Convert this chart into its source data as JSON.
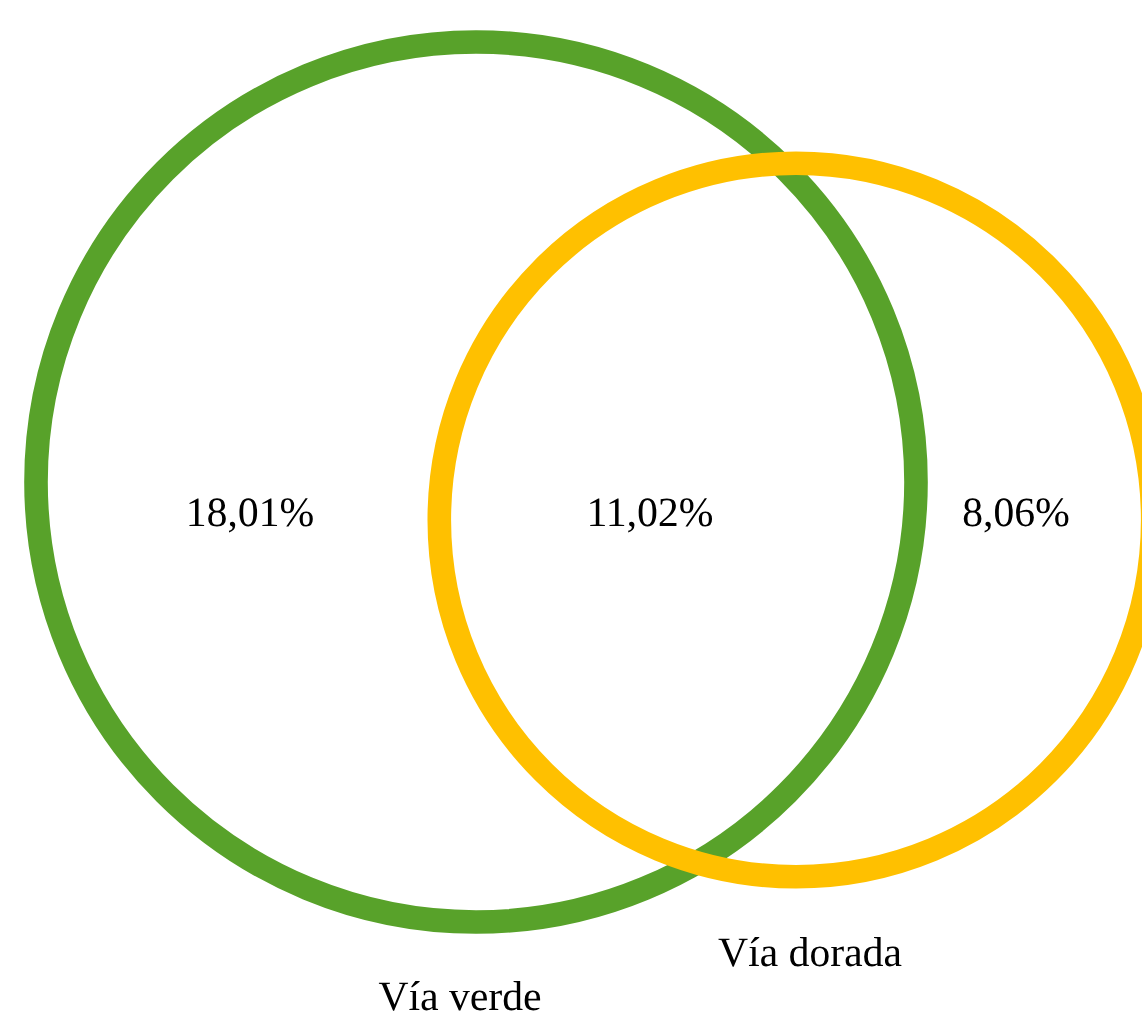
{
  "chart_data": {
    "type": "other",
    "categories": [
      null,
      null,
      null
    ],
    "values": [
      18.01,
      11.02,
      8.06
    ],
    "value_labels": [
      "18,01%",
      "11,02%",
      "8,06%"
    ],
    "annotations": [
      "Vía verde",
      "Vía dorada"
    ]
  }
}
